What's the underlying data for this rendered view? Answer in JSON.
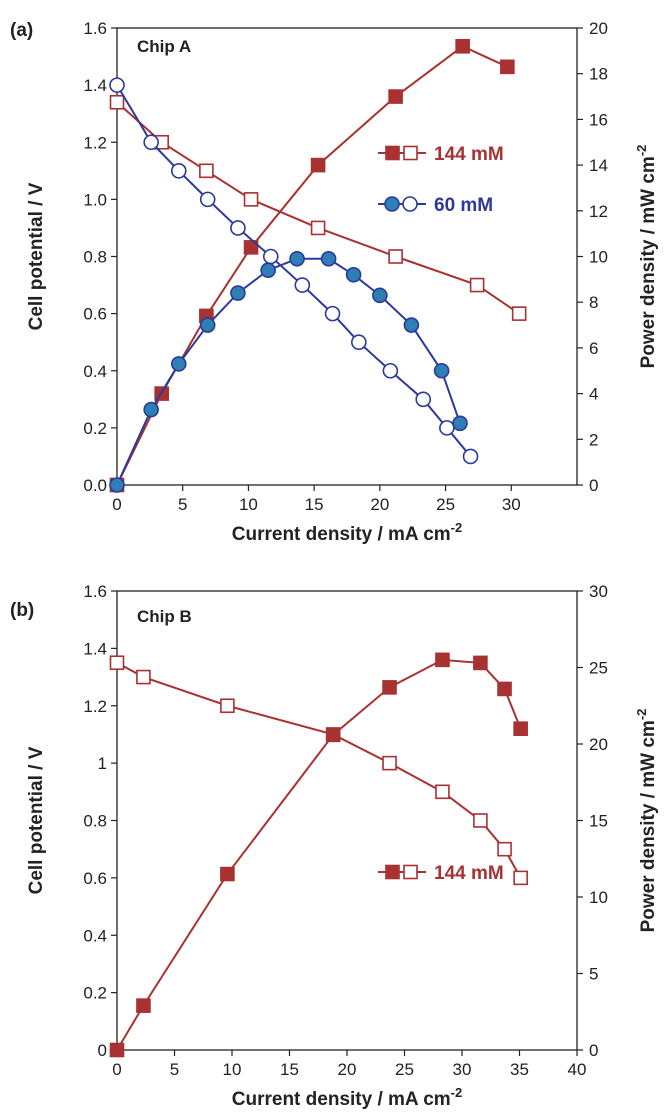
{
  "chart_data": [
    {
      "type": "line",
      "panel_tag": "(a)",
      "chip_label": "Chip A",
      "xlabel": "Current density / mA cm",
      "xlabel_sup": "-2",
      "ylabel_left": "Cell potential / V",
      "ylabel_right": "Power density / mW cm",
      "ylabel_right_sup": "-2",
      "xlim": [
        0,
        35
      ],
      "ylim_left": [
        0,
        1.6
      ],
      "ylim_right": [
        0,
        20
      ],
      "x_ticks": [
        "0",
        "5",
        "10",
        "15",
        "20",
        "25",
        "30"
      ],
      "y_left_ticks": [
        "0.0",
        "0.2",
        "0.4",
        "0.6",
        "0.8",
        "1.0",
        "1.2",
        "1.4",
        "1.6"
      ],
      "y_right_ticks": [
        "0",
        "2",
        "4",
        "6",
        "8",
        "10",
        "12",
        "14",
        "16",
        "18",
        "20"
      ],
      "grid": false,
      "series": [
        {
          "name": "144 mM",
          "color": "#a83232",
          "marker": "square",
          "voltage": {
            "x": [
              0,
              3.4,
              6.8,
              10.2,
              15.3,
              21.2,
              27.4,
              30.6
            ],
            "y": [
              1.34,
              1.2,
              1.1,
              1.0,
              0.9,
              0.8,
              0.7,
              0.6
            ]
          },
          "power": {
            "x": [
              0,
              3.4,
              6.8,
              10.2,
              15.3,
              21.2,
              26.3,
              29.7
            ],
            "y": [
              0,
              4.0,
              7.4,
              10.4,
              14.0,
              17.0,
              19.2,
              18.3
            ]
          }
        },
        {
          "name": "60 mM",
          "color": "#2b3a9a",
          "fill_color": "#2e7fb6",
          "marker": "circle",
          "voltage": {
            "x": [
              0,
              2.6,
              4.7,
              6.9,
              9.2,
              11.7,
              14.1,
              16.4,
              18.4,
              20.8,
              23.3,
              25.1,
              26.9
            ],
            "y": [
              1.4,
              1.2,
              1.1,
              1.0,
              0.9,
              0.8,
              0.7,
              0.6,
              0.5,
              0.4,
              0.3,
              0.2,
              0.1
            ]
          },
          "power": {
            "x": [
              0,
              2.6,
              4.7,
              6.9,
              9.2,
              11.5,
              13.7,
              16.1,
              18.0,
              20.0,
              22.4,
              24.7,
              26.1
            ],
            "y": [
              0,
              3.3,
              5.3,
              7.0,
              8.4,
              9.4,
              9.9,
              9.9,
              9.2,
              8.3,
              7.0,
              5.0,
              2.7
            ]
          }
        }
      ]
    },
    {
      "type": "line",
      "panel_tag": "(b)",
      "chip_label": "Chip B",
      "xlabel": "Current density / mA cm",
      "xlabel_sup": "-2",
      "ylabel_left": "Cell potential / V",
      "ylabel_right": "Power density / mW cm",
      "ylabel_right_sup": "-2",
      "xlim": [
        0,
        40
      ],
      "ylim_left": [
        0,
        1.6
      ],
      "ylim_right": [
        0,
        30
      ],
      "x_ticks": [
        "0",
        "5",
        "10",
        "15",
        "20",
        "25",
        "30",
        "35",
        "40"
      ],
      "y_left_ticks": [
        "0",
        "0.2",
        "0.4",
        "0.6",
        "0.8",
        "1",
        "1.2",
        "1.4",
        "1.6"
      ],
      "y_right_ticks": [
        "0",
        "5",
        "10",
        "15",
        "20",
        "25",
        "30"
      ],
      "grid": false,
      "series": [
        {
          "name": "144 mM",
          "color": "#a83232",
          "marker": "square",
          "voltage": {
            "x": [
              0,
              2.3,
              9.6,
              18.8,
              23.7,
              28.3,
              31.6,
              33.7,
              35.1
            ],
            "y": [
              1.35,
              1.3,
              1.2,
              1.1,
              1.0,
              0.9,
              0.8,
              0.7,
              0.6
            ]
          },
          "power": {
            "x": [
              0,
              2.3,
              9.6,
              18.8,
              23.7,
              28.3,
              31.6,
              33.7,
              35.1
            ],
            "y": [
              0,
              2.9,
              11.5,
              20.6,
              23.7,
              25.5,
              25.3,
              23.6,
              21.0
            ]
          }
        }
      ]
    }
  ]
}
